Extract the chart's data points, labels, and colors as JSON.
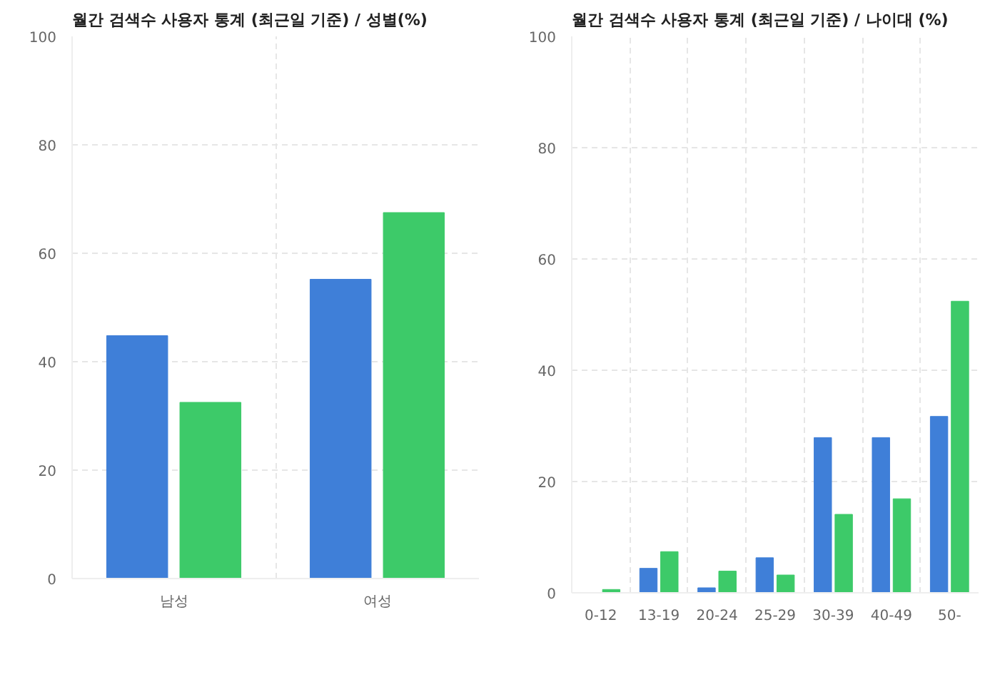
{
  "chart_data": [
    {
      "type": "bar",
      "title": "월간 검색수 사용자 통계 (최근일 기준) / 성별(%)",
      "categories": [
        "남성",
        "여성"
      ],
      "series": [
        {
          "color": "#3f7fd8",
          "values": [
            44.8,
            55.2
          ]
        },
        {
          "color": "#3dca69",
          "values": [
            32.5,
            67.5
          ]
        }
      ],
      "ylim": [
        0,
        100
      ],
      "yticks": [
        0,
        20,
        40,
        60,
        80,
        100
      ],
      "grid": true
    },
    {
      "type": "bar",
      "title": "월간 검색수 사용자 통계 (최근일 기준) / 나이대 (%)",
      "categories": [
        "0-12",
        "13-19",
        "20-24",
        "25-29",
        "30-39",
        "40-49",
        "50-"
      ],
      "series": [
        {
          "color": "#3f7fd8",
          "values": [
            0,
            4.4,
            0.9,
            6.3,
            27.9,
            27.9,
            31.7
          ]
        },
        {
          "color": "#3dca69",
          "values": [
            0.6,
            7.4,
            3.9,
            3.2,
            14.1,
            16.9,
            52.4
          ]
        }
      ],
      "ylim": [
        0,
        100
      ],
      "yticks": [
        0,
        20,
        40,
        60,
        80,
        100
      ],
      "grid": true
    }
  ]
}
